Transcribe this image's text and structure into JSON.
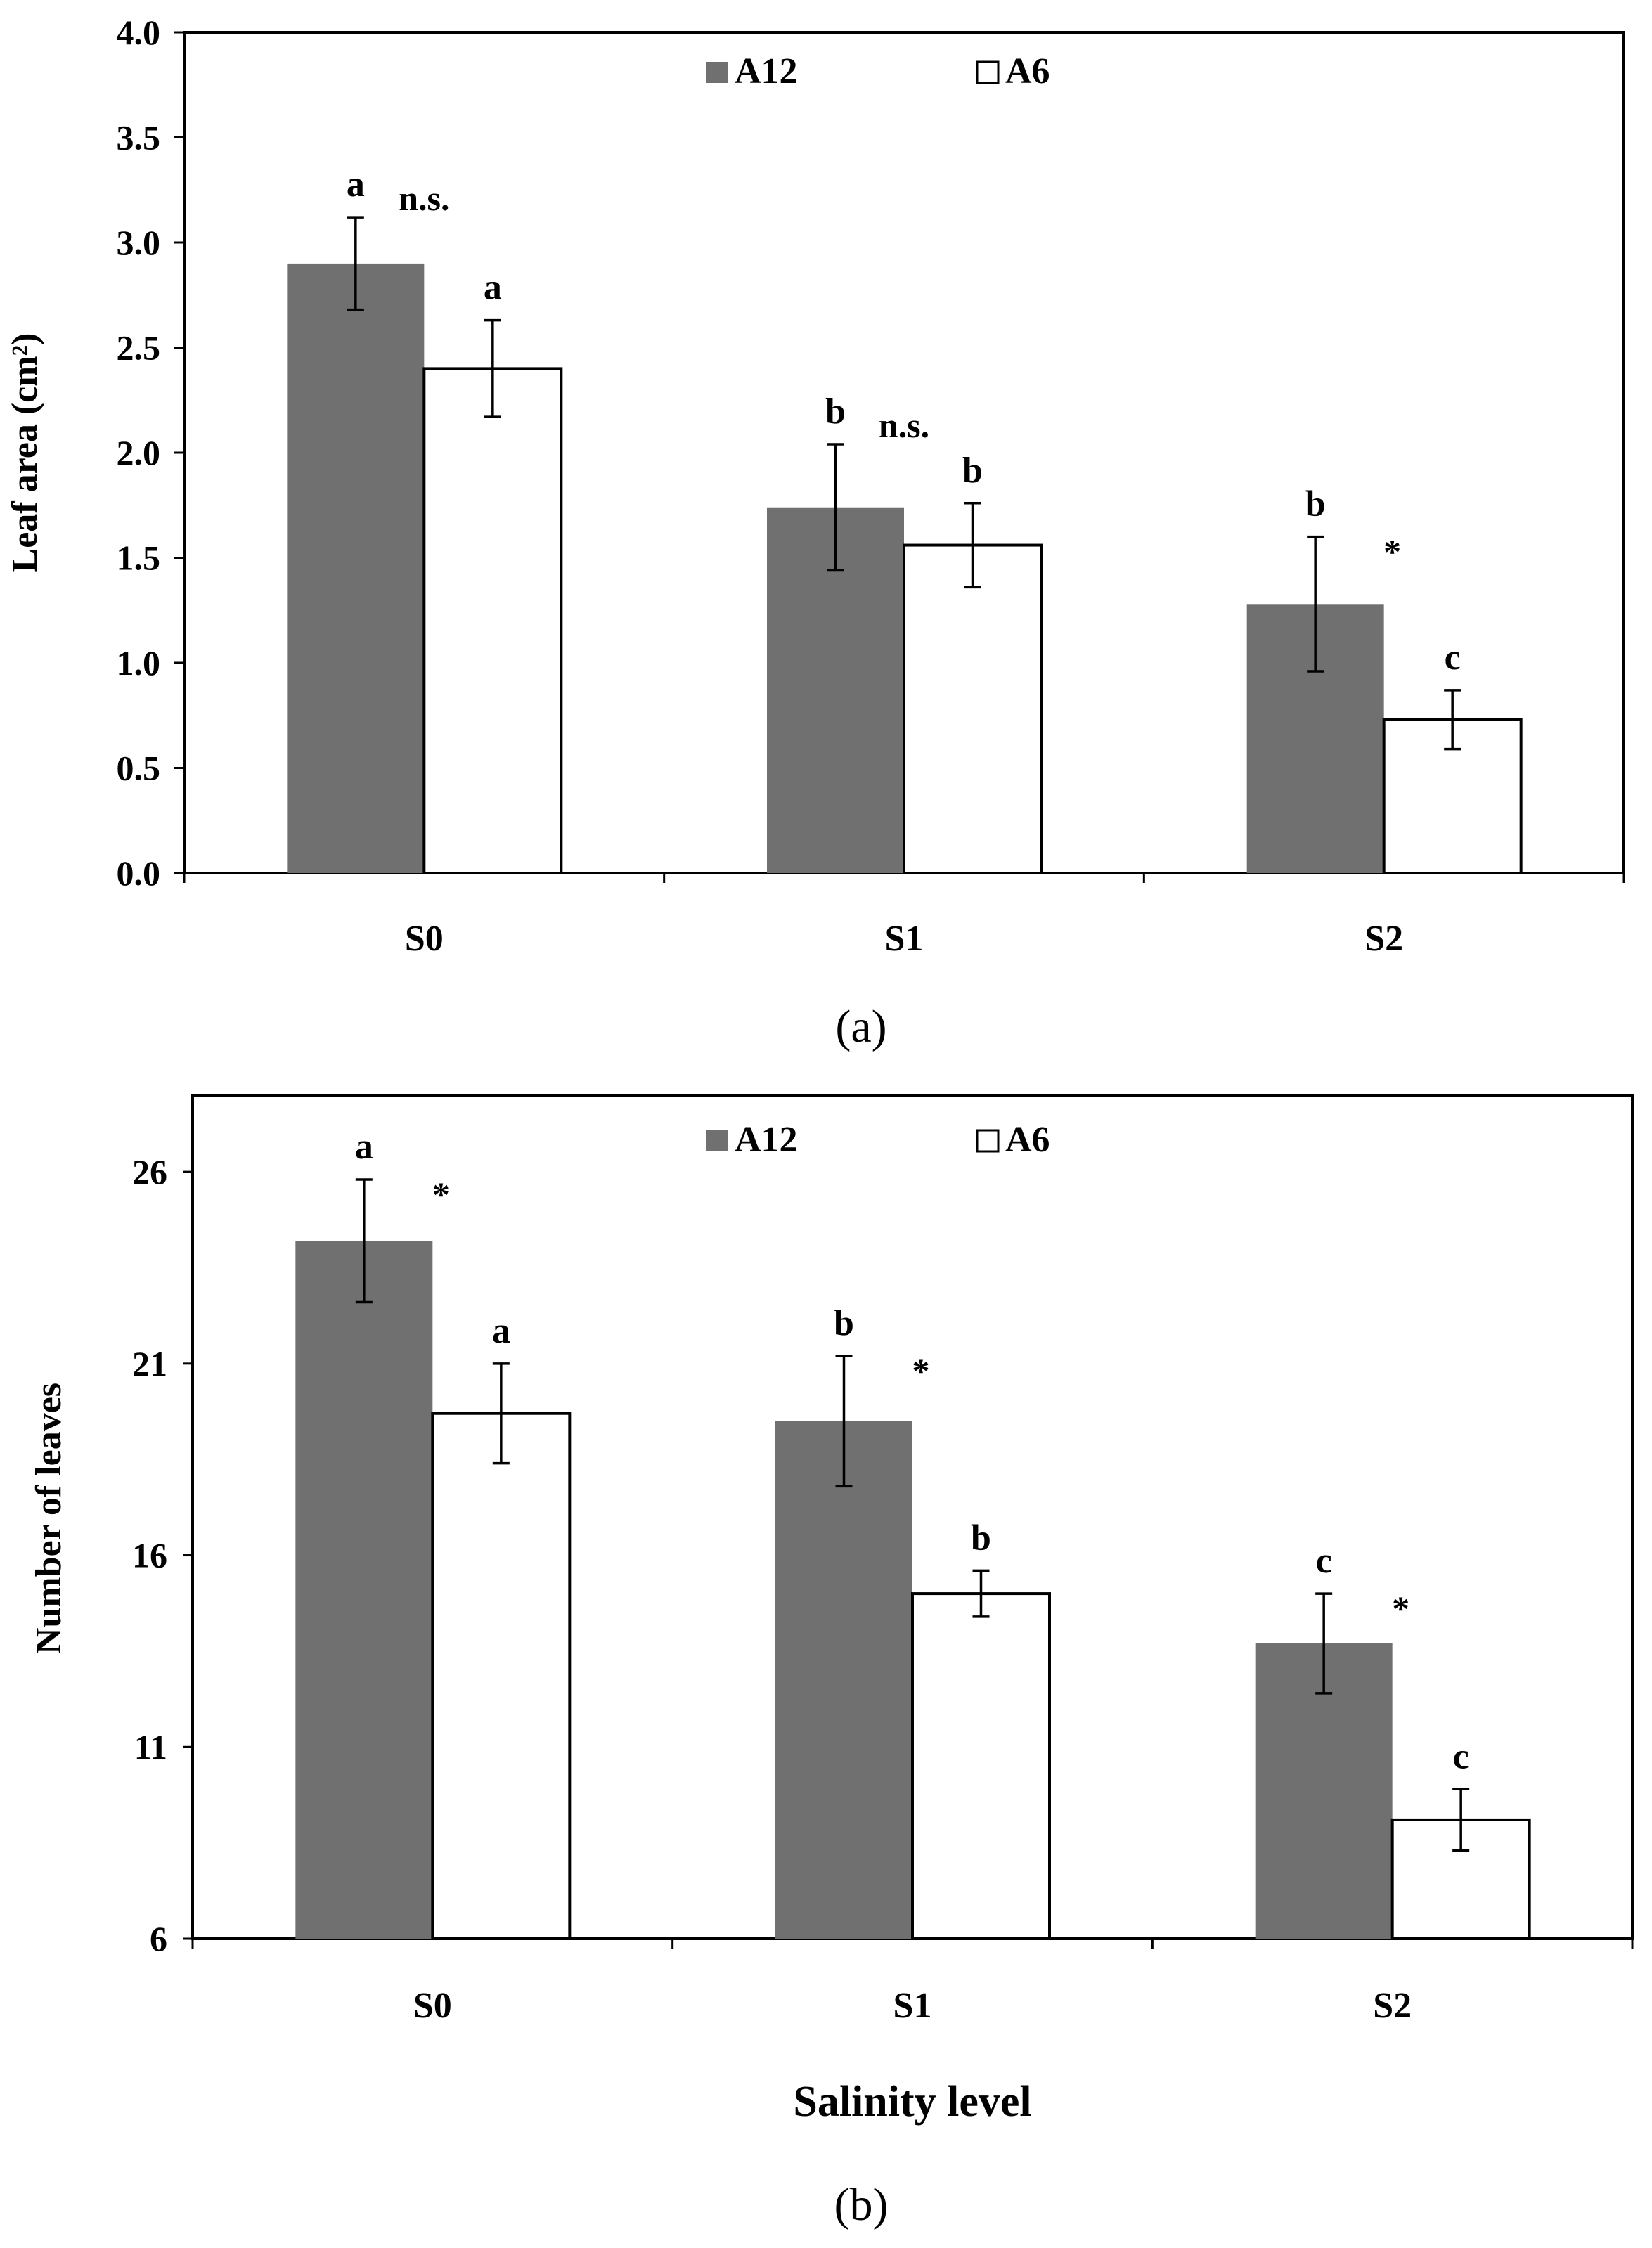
{
  "colors": {
    "a12_fill": "#707070",
    "a6_fill": "#ffffff",
    "axis": "#000000"
  },
  "chart_data": [
    {
      "type": "bar",
      "panel_label": "(a)",
      "title": "",
      "xlabel": "",
      "ylabel": "Leaf area (cm²)",
      "categories": [
        "S0",
        "S1",
        "S2"
      ],
      "yticks": [
        "0.0",
        "0.5",
        "1.0",
        "1.5",
        "2.0",
        "2.5",
        "3.0",
        "3.5",
        "4.0"
      ],
      "ylim": [
        0,
        4.0
      ],
      "grid": false,
      "legend": [
        "A12",
        "A6"
      ],
      "legend_position": "top-center",
      "series": [
        {
          "name": "A12",
          "values": [
            2.9,
            1.74,
            1.28
          ],
          "errors": [
            0.22,
            0.3,
            0.32
          ],
          "letters": [
            "a",
            "b",
            "b"
          ]
        },
        {
          "name": "A6",
          "values": [
            2.4,
            1.56,
            0.73
          ],
          "errors": [
            0.23,
            0.2,
            0.14
          ],
          "letters": [
            "a",
            "b",
            "c"
          ]
        }
      ],
      "significance": [
        "n.s.",
        "n.s.",
        "*"
      ]
    },
    {
      "type": "bar",
      "panel_label": "(b)",
      "title": "",
      "xlabel": "Salinity level",
      "ylabel": "Number of leaves",
      "categories": [
        "S0",
        "S1",
        "S2"
      ],
      "yticks": [
        "6",
        "11",
        "16",
        "21",
        "26"
      ],
      "ylim": [
        6,
        28
      ],
      "grid": false,
      "legend": [
        "A12",
        "A6"
      ],
      "legend_position": "top-center",
      "series": [
        {
          "name": "A12",
          "values": [
            24.2,
            19.5,
            13.7
          ],
          "errors": [
            1.6,
            1.7,
            1.3
          ],
          "letters": [
            "a",
            "b",
            "c"
          ]
        },
        {
          "name": "A6",
          "values": [
            19.7,
            15.0,
            9.1
          ],
          "errors": [
            1.3,
            0.6,
            0.8
          ],
          "letters": [
            "a",
            "b",
            "c"
          ]
        }
      ],
      "significance": [
        "*",
        "*",
        "*"
      ]
    }
  ]
}
